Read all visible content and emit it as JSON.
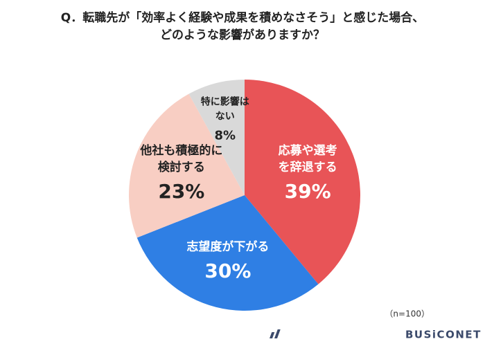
{
  "chart_data": {
    "type": "pie",
    "title": [
      "Q．転職先が「効率よく経験や成果を積めなさそう」と感じた場合、",
      "どのような影響がありますか？"
    ],
    "categories": [
      [
        "応募や選考",
        "を辞退する"
      ],
      [
        "志望度が下がる"
      ],
      [
        "他社も積極的に",
        "検討する"
      ],
      [
        "特に影響は",
        "ない"
      ]
    ],
    "values": [
      39,
      30,
      23,
      8
    ],
    "value_labels": [
      "39%",
      "30%",
      "23%",
      "8%"
    ],
    "colors": [
      "#e85457",
      "#2f7fe4",
      "#f8cec3",
      "#d9d9d9"
    ],
    "note": "（n=100）",
    "brand": "BUSiCONET"
  }
}
